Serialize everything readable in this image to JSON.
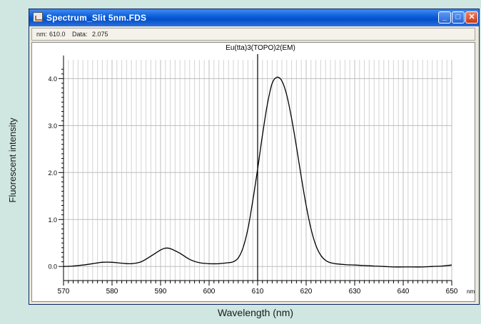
{
  "outer": {
    "ylabel": "Fluorescent intensity",
    "xlabel": "Wavelength (nm)"
  },
  "window": {
    "title": "Spectrum_Slit 5nm.FDS",
    "buttons": {
      "minimize": "minimize-icon",
      "maximize": "maximize-icon",
      "close": "close-icon"
    }
  },
  "status": {
    "nm_label": "nm:",
    "nm_value": "610.0",
    "data_label": "Data:",
    "data_value": "2.075"
  },
  "chart_data": {
    "type": "line",
    "title": "Eu(tta)3(TOPO)2(EM)",
    "xlabel": "nm",
    "ylabel": "",
    "xlim": [
      570,
      650
    ],
    "ylim": [
      -0.3,
      4.4
    ],
    "xticks": [
      570,
      580,
      590,
      600,
      610,
      620,
      630,
      640,
      650
    ],
    "xtick_labels": [
      "570",
      "580",
      "590",
      "600",
      "610",
      "620",
      "630",
      "640",
      "650"
    ],
    "yticks": [
      0,
      1,
      2,
      3,
      4
    ],
    "ytick_labels": [
      "0.0",
      "1.0",
      "2.0",
      "3.0",
      "4.0"
    ],
    "grid": true,
    "cursor_x": 610,
    "line_color": "#000000",
    "series": [
      {
        "x": [
          570,
          572,
          574,
          576,
          578,
          580,
          582,
          584,
          586,
          588,
          590,
          591,
          592,
          594,
          596,
          598,
          600,
          602,
          604,
          605,
          606,
          607,
          608,
          609,
          610,
          611,
          612,
          613,
          614,
          615,
          616,
          617,
          618,
          619,
          620,
          621,
          622,
          623,
          624,
          625,
          626,
          628,
          630,
          632,
          634,
          636,
          638,
          640,
          642,
          644,
          646,
          648,
          650
        ],
        "y": [
          0.0,
          0.01,
          0.03,
          0.06,
          0.09,
          0.09,
          0.07,
          0.06,
          0.1,
          0.22,
          0.35,
          0.39,
          0.38,
          0.28,
          0.15,
          0.08,
          0.06,
          0.06,
          0.08,
          0.1,
          0.18,
          0.4,
          0.8,
          1.4,
          2.075,
          2.8,
          3.45,
          3.9,
          4.03,
          3.95,
          3.65,
          3.15,
          2.55,
          1.9,
          1.3,
          0.8,
          0.45,
          0.24,
          0.13,
          0.08,
          0.06,
          0.04,
          0.03,
          0.02,
          0.01,
          0.0,
          -0.01,
          -0.01,
          -0.01,
          -0.01,
          0.0,
          0.01,
          0.03
        ]
      }
    ]
  }
}
